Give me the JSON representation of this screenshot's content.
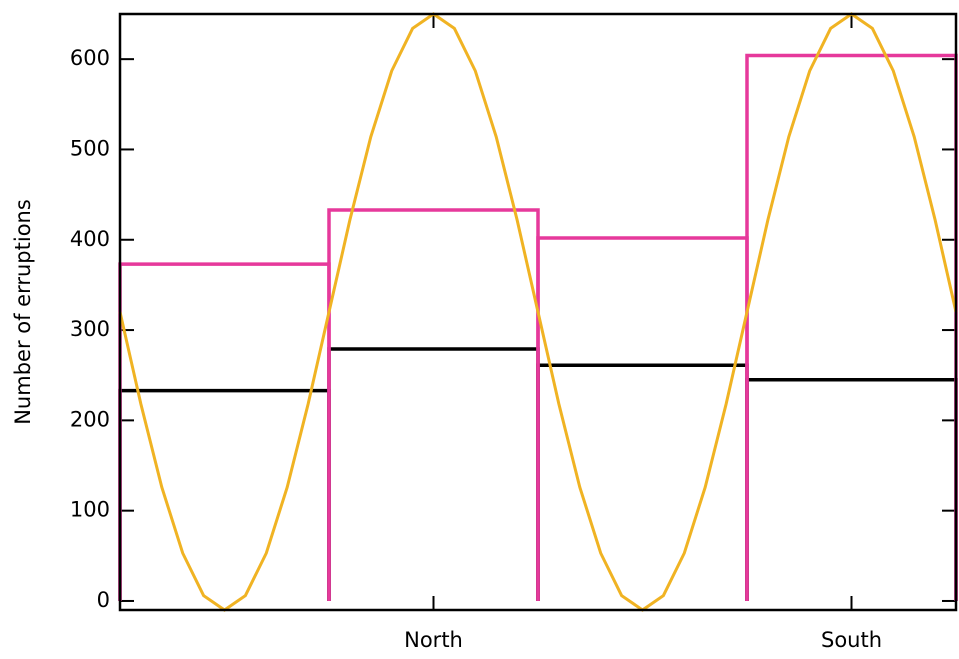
{
  "chart_data": {
    "type": "histogram",
    "ylabel": "Number of erruptions",
    "bins": [
      0,
      1,
      2,
      3,
      4
    ],
    "xlim": [
      0,
      4
    ],
    "xticks": [
      {
        "value": 1.5,
        "label": "North"
      },
      {
        "value": 3.5,
        "label": "South"
      }
    ],
    "ylim": [
      -10,
      650
    ],
    "yticks": [
      0,
      100,
      200,
      300,
      400,
      500,
      600
    ],
    "series": [
      {
        "color": "#000000",
        "values": [
          233,
          279,
          261,
          245
        ]
      },
      {
        "color": "#e6399b",
        "values": [
          373,
          433,
          402,
          604
        ]
      }
    ],
    "curve": {
      "color": "#f0b323",
      "x": [
        0,
        0.1,
        0.2,
        0.3,
        0.4,
        0.5,
        0.6,
        0.7,
        0.8,
        0.9,
        1,
        1.1,
        1.2,
        1.3,
        1.4,
        1.5,
        1.6,
        1.7,
        1.8,
        1.9,
        2,
        2.1,
        2.2,
        2.3,
        2.4,
        2.5,
        2.6,
        2.7,
        2.8,
        2.9,
        3,
        3.1,
        3.2,
        3.3,
        3.4,
        3.5,
        3.6,
        3.7,
        3.8,
        3.9,
        4
      ],
      "values": [
        320,
        218,
        126,
        53,
        6,
        -10,
        6,
        53,
        126,
        218,
        320,
        422,
        514,
        587,
        634,
        650,
        634,
        587,
        514,
        422,
        320,
        218,
        126,
        53,
        6,
        -10,
        6,
        53,
        126,
        218,
        320,
        422,
        514,
        587,
        634,
        650,
        634,
        587,
        514,
        422,
        320
      ]
    }
  }
}
